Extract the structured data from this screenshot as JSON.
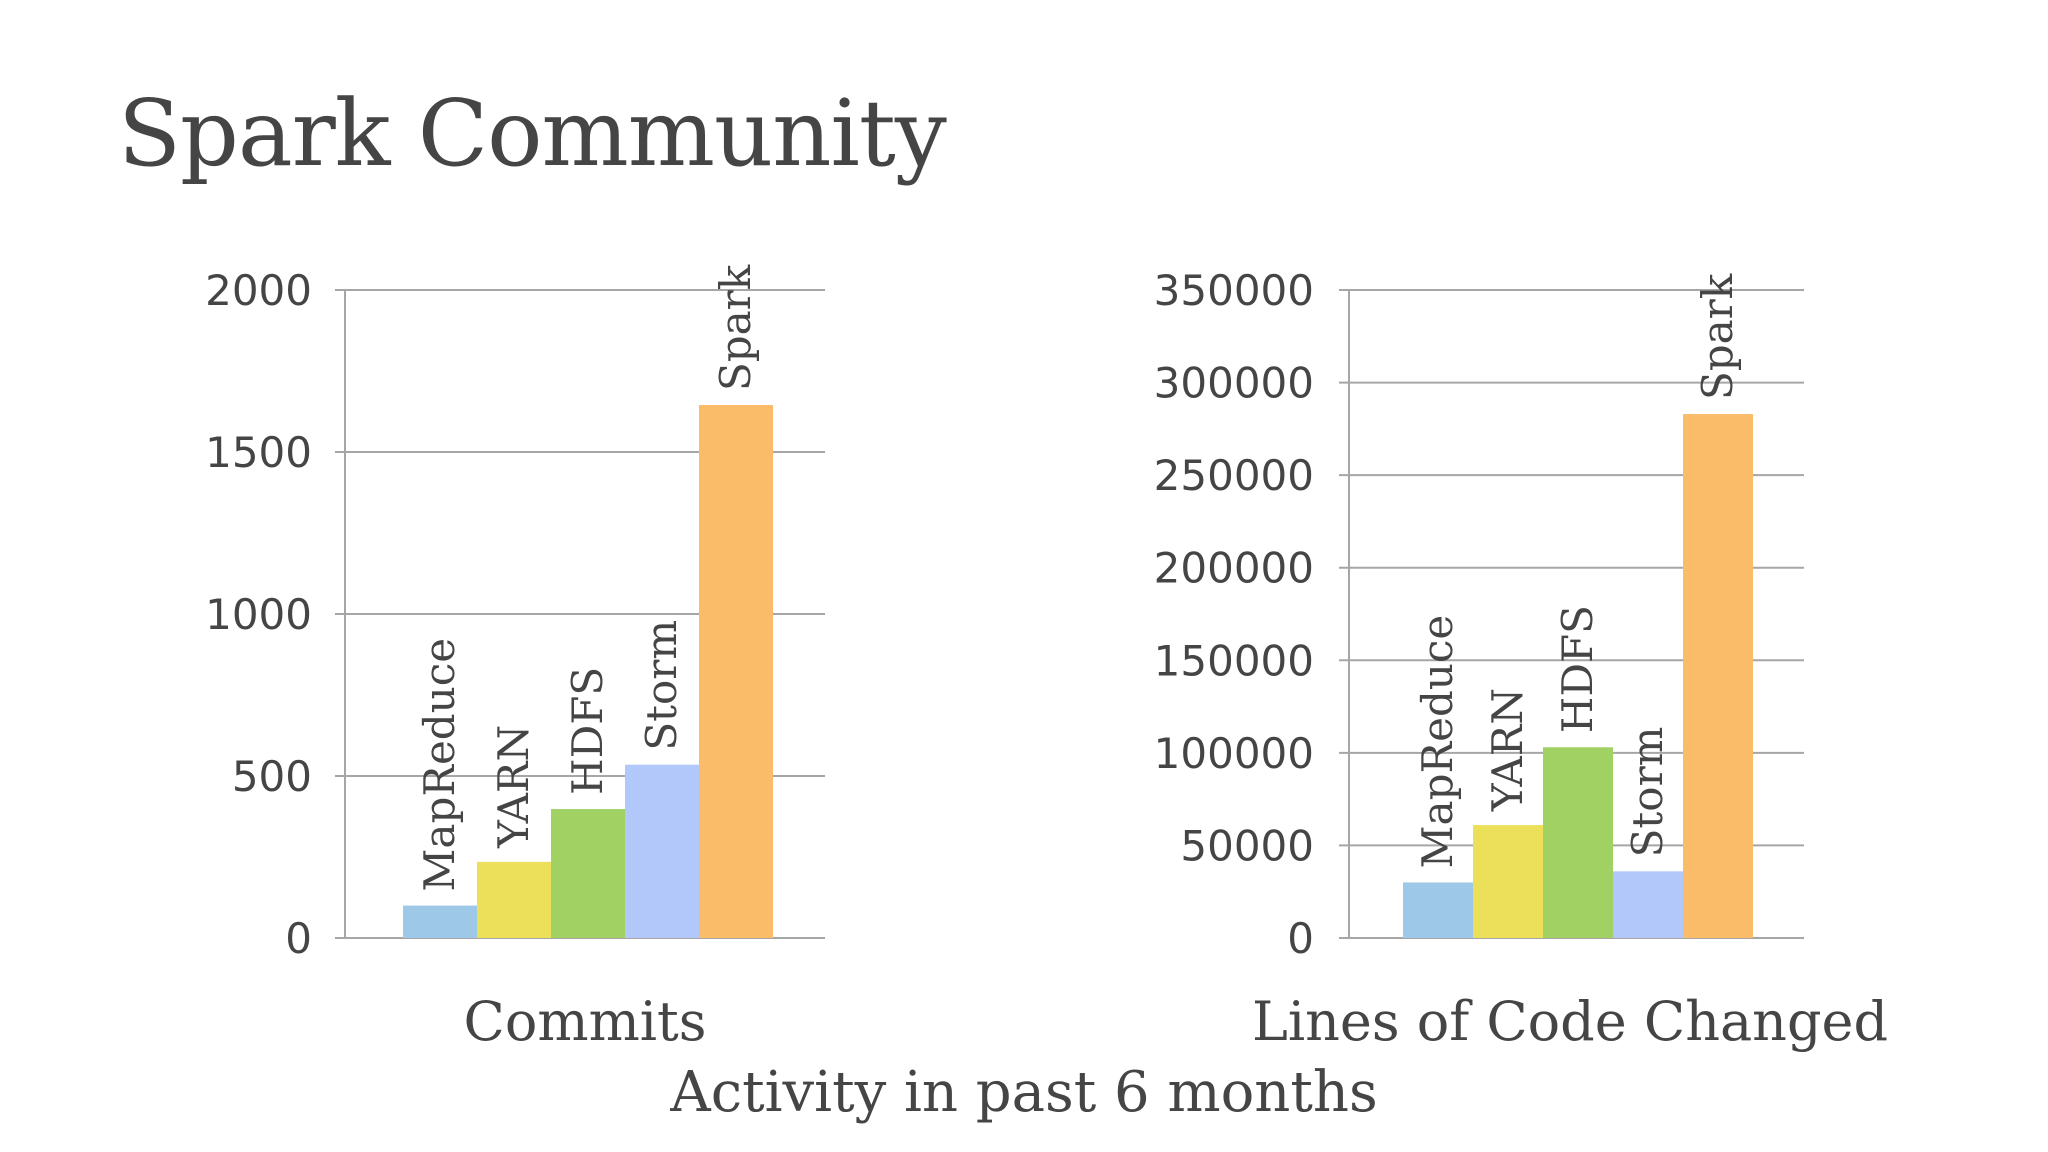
{
  "slide": {
    "title": "Spark Community",
    "caption": "Activity in past 6 months"
  },
  "colors": {
    "MapReduce": "#9dc8e8",
    "YARN": "#ece05a",
    "HDFS": "#a0d162",
    "Storm": "#b2c8fb",
    "Spark": "#fbbc6a",
    "grid": "#a6a6a6",
    "text": "#454545"
  },
  "chart_data": [
    {
      "type": "bar",
      "title": "",
      "xlabel": "Commits",
      "ylabel": "",
      "categories": [
        "MapReduce",
        "YARN",
        "HDFS",
        "Storm",
        "Spark"
      ],
      "values": [
        100,
        235,
        398,
        535,
        1645
      ],
      "ylim": [
        0,
        2000
      ],
      "yticks": [
        "0",
        "500",
        "1000",
        "1500",
        "2000"
      ],
      "ytick_values": [
        0,
        500,
        1000,
        1500,
        2000
      ],
      "grid": true,
      "legend": "none"
    },
    {
      "type": "bar",
      "title": "",
      "xlabel": "Lines of Code Changed",
      "ylabel": "",
      "categories": [
        "MapReduce",
        "YARN",
        "HDFS",
        "Storm",
        "Spark"
      ],
      "values": [
        30000,
        61000,
        103000,
        36000,
        283000
      ],
      "ylim": [
        0,
        350000
      ],
      "yticks": [
        "0",
        "50000",
        "100000",
        "150000",
        "200000",
        "250000",
        "300000",
        "350000"
      ],
      "ytick_values": [
        0,
        50000,
        100000,
        150000,
        200000,
        250000,
        300000,
        350000
      ],
      "grid": true,
      "legend": "none"
    }
  ]
}
